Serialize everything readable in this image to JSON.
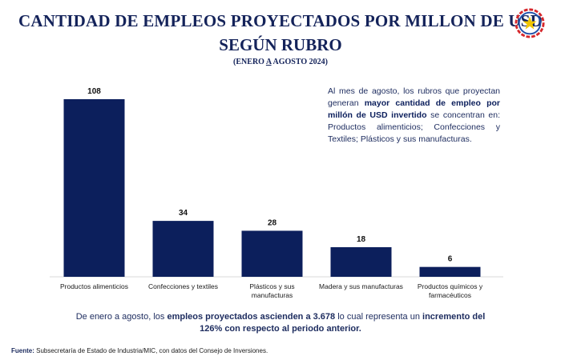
{
  "header": {
    "title_line1": "CANTIDAD DE EMPLEOS PROYECTADOS POR MILLON DE USD",
    "title_line2": "SEGÚN RUBRO",
    "period_prefix": "(ENERO ",
    "period_a": "A",
    "period_suffix": " AGOSTO 2024)"
  },
  "note": {
    "part1": "Al mes de agosto, los rubros que proyectan generan ",
    "bold": "mayor cantidad de empleo por millón de USD invertido",
    "part2": " se concentran en: Productos alimenticios; Confecciones y Textiles; Plásticos y sus manufacturas."
  },
  "summary": {
    "part1": "De enero a agosto, los ",
    "bold1": "empleos proyectados ascienden a 3.678",
    "part2": " lo cual representa un ",
    "bold2": "incremento del 126% con respecto al periodo anterior."
  },
  "source": {
    "label": "Fuente:",
    "text": " Subsecretaría de Estado de Industria/MIC, con datos del Consejo de Inversiones."
  },
  "colors": {
    "bar": "#0c1f5c",
    "title": "#14235a",
    "logo_red": "#d6262b",
    "logo_blue": "#1f4fa8",
    "logo_star": "#f2c500"
  },
  "logo_icon": "paraguay-seal-icon",
  "chart_data": {
    "type": "bar",
    "categories": [
      "Productos alimenticios",
      "Confecciones y textiles",
      "Plásticos y sus manufacturas",
      "Madera y sus manufacturas",
      "Productos químicos y farmacéuticos"
    ],
    "values": [
      108,
      34,
      28,
      18,
      6
    ],
    "ylim": [
      0,
      108
    ],
    "grid": false,
    "legend": "none"
  }
}
